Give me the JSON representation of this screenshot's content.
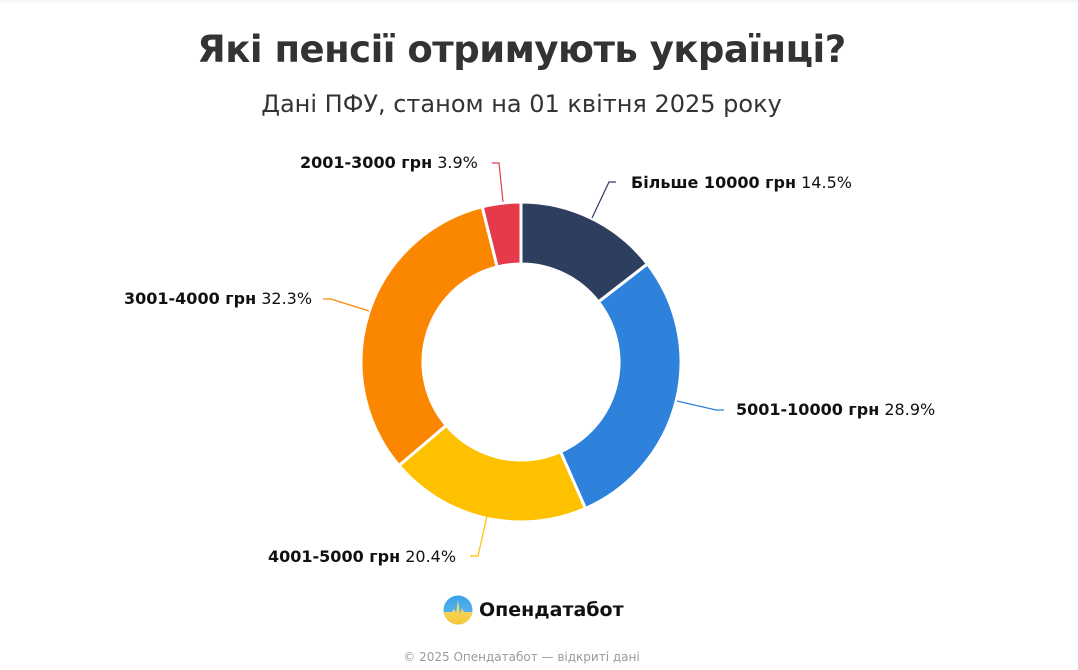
{
  "header": {
    "title": "Які пенсії отримують українці?",
    "subtitle": "Дані ПФУ, станом на 01 квітня 2025 року"
  },
  "chart_data": {
    "type": "pie",
    "variant": "donut",
    "title": "Які пенсії отримують українці?",
    "subtitle": "Дані ПФУ, станом на 01 квітня 2025 року",
    "categories": [
      "Більше 10000 грн",
      "5001-10000 грн",
      "4001-5000 грн",
      "3001-4000 грн",
      "2001-3000 грн"
    ],
    "values": [
      14.5,
      28.9,
      20.4,
      32.3,
      3.9
    ],
    "unit": "%",
    "colors": [
      "#2e3e5f",
      "#2f82db",
      "#fdc100",
      "#fb8700",
      "#e43a4a"
    ],
    "legend_position": "data labels with leader lines",
    "grid": false
  },
  "labels": [
    {
      "category": "Більше 10000 грн",
      "value": "14.5%"
    },
    {
      "category": "5001-10000 грн",
      "value": "28.9%"
    },
    {
      "category": "4001-5000 грн",
      "value": "20.4%"
    },
    {
      "category": "3001-4000 грн",
      "value": "32.3%"
    },
    {
      "category": "2001-3000 грн",
      "value": "3.9%"
    }
  ],
  "brand": {
    "name": "Опендатабот",
    "icon": "opendatabot-logo-icon"
  },
  "footer": {
    "text": "© 2025 Опендатабот — відкриті дані"
  }
}
